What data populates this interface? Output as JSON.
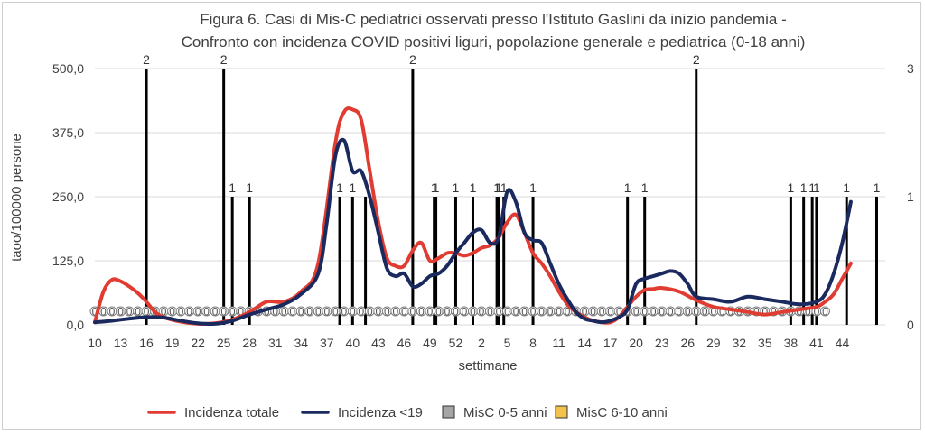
{
  "chart_data": {
    "type": "line",
    "title": "Figura 6. Casi di Mis-C pediatrici osservati presso l'Istituto Gaslini da inizio pandemia -",
    "subtitle": "Confronto con incidenza COVID positivi liguri, popolazione generale e pediatrica (0-18 anni)",
    "xlabel": "settimane",
    "ylabel": "taoo/100000 persone",
    "ylim": [
      0,
      500
    ],
    "y_ticks": [
      "0,0",
      "125,0",
      "250,0",
      "375,0",
      "500,0"
    ],
    "y2lim": [
      0,
      3
    ],
    "y2_ticks": [
      "0",
      "1",
      "3"
    ],
    "x_tick_labels": [
      "10",
      "13",
      "16",
      "19",
      "22",
      "25",
      "28",
      "31",
      "34",
      "37",
      "40",
      "43",
      "46",
      "49",
      "52",
      "2",
      "5",
      "8",
      "11",
      "14",
      "17",
      "20",
      "23",
      "26",
      "29",
      "32",
      "35",
      "38",
      "41",
      "44"
    ],
    "n_weeks": 89,
    "grid": true,
    "legend_position": "bottom",
    "series": [
      {
        "name": "Incidenza totale",
        "color": "#e03c31",
        "axis": "left",
        "x": [
          0,
          1,
          2,
          3,
          4,
          5,
          6,
          7,
          8,
          10,
          12,
          14,
          16,
          18,
          20,
          22,
          24,
          26,
          28,
          29,
          30,
          31,
          32,
          33,
          34,
          35,
          36,
          37,
          38,
          39,
          40,
          41,
          42,
          43,
          44,
          45,
          46,
          47,
          48,
          49,
          50,
          51,
          52,
          53,
          54,
          55,
          56,
          57,
          58,
          59,
          60,
          61,
          62,
          63,
          64,
          65,
          66,
          68,
          70,
          72,
          74,
          76,
          78,
          80,
          82,
          84,
          85,
          86,
          87,
          88
        ],
        "y": [
          5,
          65,
          88,
          85,
          75,
          62,
          45,
          25,
          15,
          6,
          2,
          3,
          10,
          25,
          45,
          45,
          65,
          120,
          355,
          415,
          420,
          400,
          300,
          200,
          130,
          115,
          115,
          145,
          160,
          125,
          130,
          140,
          140,
          135,
          140,
          150,
          155,
          170,
          200,
          215,
          180,
          140,
          120,
          95,
          65,
          40,
          25,
          15,
          8,
          5,
          5,
          15,
          35,
          55,
          68,
          70,
          72,
          65,
          48,
          35,
          30,
          25,
          20,
          25,
          30,
          35,
          45,
          60,
          90,
          120
        ]
      },
      {
        "name": "Incidenza <19",
        "color": "#1b2a5e",
        "axis": "left",
        "x": [
          0,
          2,
          4,
          6,
          8,
          10,
          12,
          14,
          16,
          18,
          20,
          22,
          24,
          26,
          27,
          28,
          29,
          30,
          31,
          32,
          33,
          34,
          35,
          36,
          37,
          38,
          39,
          40,
          41,
          42,
          43,
          44,
          45,
          46,
          47,
          48,
          49,
          50,
          51,
          52,
          53,
          54,
          55,
          56,
          57,
          58,
          59,
          60,
          61,
          62,
          63,
          64,
          65,
          66,
          67,
          68,
          69,
          70,
          72,
          74,
          76,
          78,
          80,
          82,
          84,
          85,
          86,
          87,
          88
        ],
        "y": [
          5,
          8,
          12,
          15,
          14,
          8,
          3,
          2,
          8,
          20,
          30,
          40,
          60,
          100,
          200,
          330,
          360,
          300,
          300,
          250,
          180,
          110,
          95,
          100,
          75,
          80,
          95,
          100,
          115,
          140,
          160,
          180,
          185,
          160,
          170,
          260,
          240,
          180,
          165,
          160,
          120,
          80,
          50,
          25,
          12,
          8,
          5,
          8,
          15,
          30,
          80,
          90,
          95,
          100,
          105,
          100,
          80,
          55,
          50,
          45,
          55,
          50,
          45,
          40,
          45,
          60,
          100,
          160,
          240
        ]
      },
      {
        "name": "MisC 0-5 anni",
        "color": "#a6a6a6",
        "axis": "right",
        "marker_label": "0",
        "x": [
          0,
          1,
          2,
          3,
          4,
          5,
          6,
          7,
          8,
          9,
          10,
          11,
          12,
          13,
          14,
          15,
          16,
          17,
          18,
          19,
          20,
          21,
          22,
          23,
          24,
          25,
          26,
          27,
          28,
          29,
          30,
          31,
          32,
          33,
          34,
          35,
          36,
          37,
          38,
          39,
          40,
          41,
          42,
          43,
          44,
          45,
          46,
          47,
          48,
          49,
          50,
          51,
          52,
          53,
          54,
          55,
          56,
          57,
          58,
          59,
          60,
          61,
          62,
          63,
          64,
          65,
          66,
          67,
          68,
          69,
          70,
          71,
          72,
          73,
          74,
          75,
          76,
          77,
          78,
          79,
          80,
          81,
          82,
          83,
          84,
          85
        ],
        "y": [
          0,
          0,
          0,
          0,
          0,
          0,
          0,
          0,
          0,
          0,
          0,
          0,
          0,
          0,
          0,
          0,
          0,
          0,
          0,
          0,
          0,
          0,
          0,
          0,
          0,
          0,
          0,
          0,
          0,
          0,
          0,
          0,
          0,
          0,
          0,
          0,
          0,
          0,
          0,
          0,
          0,
          0,
          0,
          0,
          0,
          0,
          0,
          0,
          0,
          0,
          0,
          0,
          0,
          0,
          0,
          0,
          0,
          0,
          0,
          0,
          0,
          0,
          0,
          0,
          0,
          0,
          0,
          0,
          0,
          0,
          0,
          0,
          0,
          0,
          0,
          0,
          0,
          0,
          0,
          0,
          0,
          0,
          0,
          0,
          0,
          0
        ]
      },
      {
        "name": "MisC 6-10 anni",
        "color": "#f2c14e",
        "axis": "right",
        "values": []
      }
    ],
    "event_bars": {
      "axis": "right",
      "color": "#000000",
      "x": [
        6,
        15,
        16,
        18,
        28.5,
        30,
        31.5,
        37,
        39.5,
        39.7,
        42,
        44,
        46.8,
        47,
        47.6,
        51,
        62,
        64,
        70,
        81,
        82.5,
        83.5,
        84,
        87.5,
        91
      ],
      "y": [
        2,
        2,
        1,
        1,
        1,
        1,
        1,
        2,
        1,
        1,
        1,
        1,
        1,
        1,
        1,
        1,
        1,
        1,
        2,
        1,
        1,
        1,
        1,
        1,
        1
      ],
      "labels": [
        "2",
        "2",
        "1",
        "1",
        "1",
        "1",
        "",
        "2",
        "1",
        "1",
        "1",
        "1",
        "1",
        "1",
        "1",
        "1",
        "1",
        "1",
        "2",
        "1",
        "1",
        "1",
        "1",
        "1",
        "1"
      ]
    }
  }
}
